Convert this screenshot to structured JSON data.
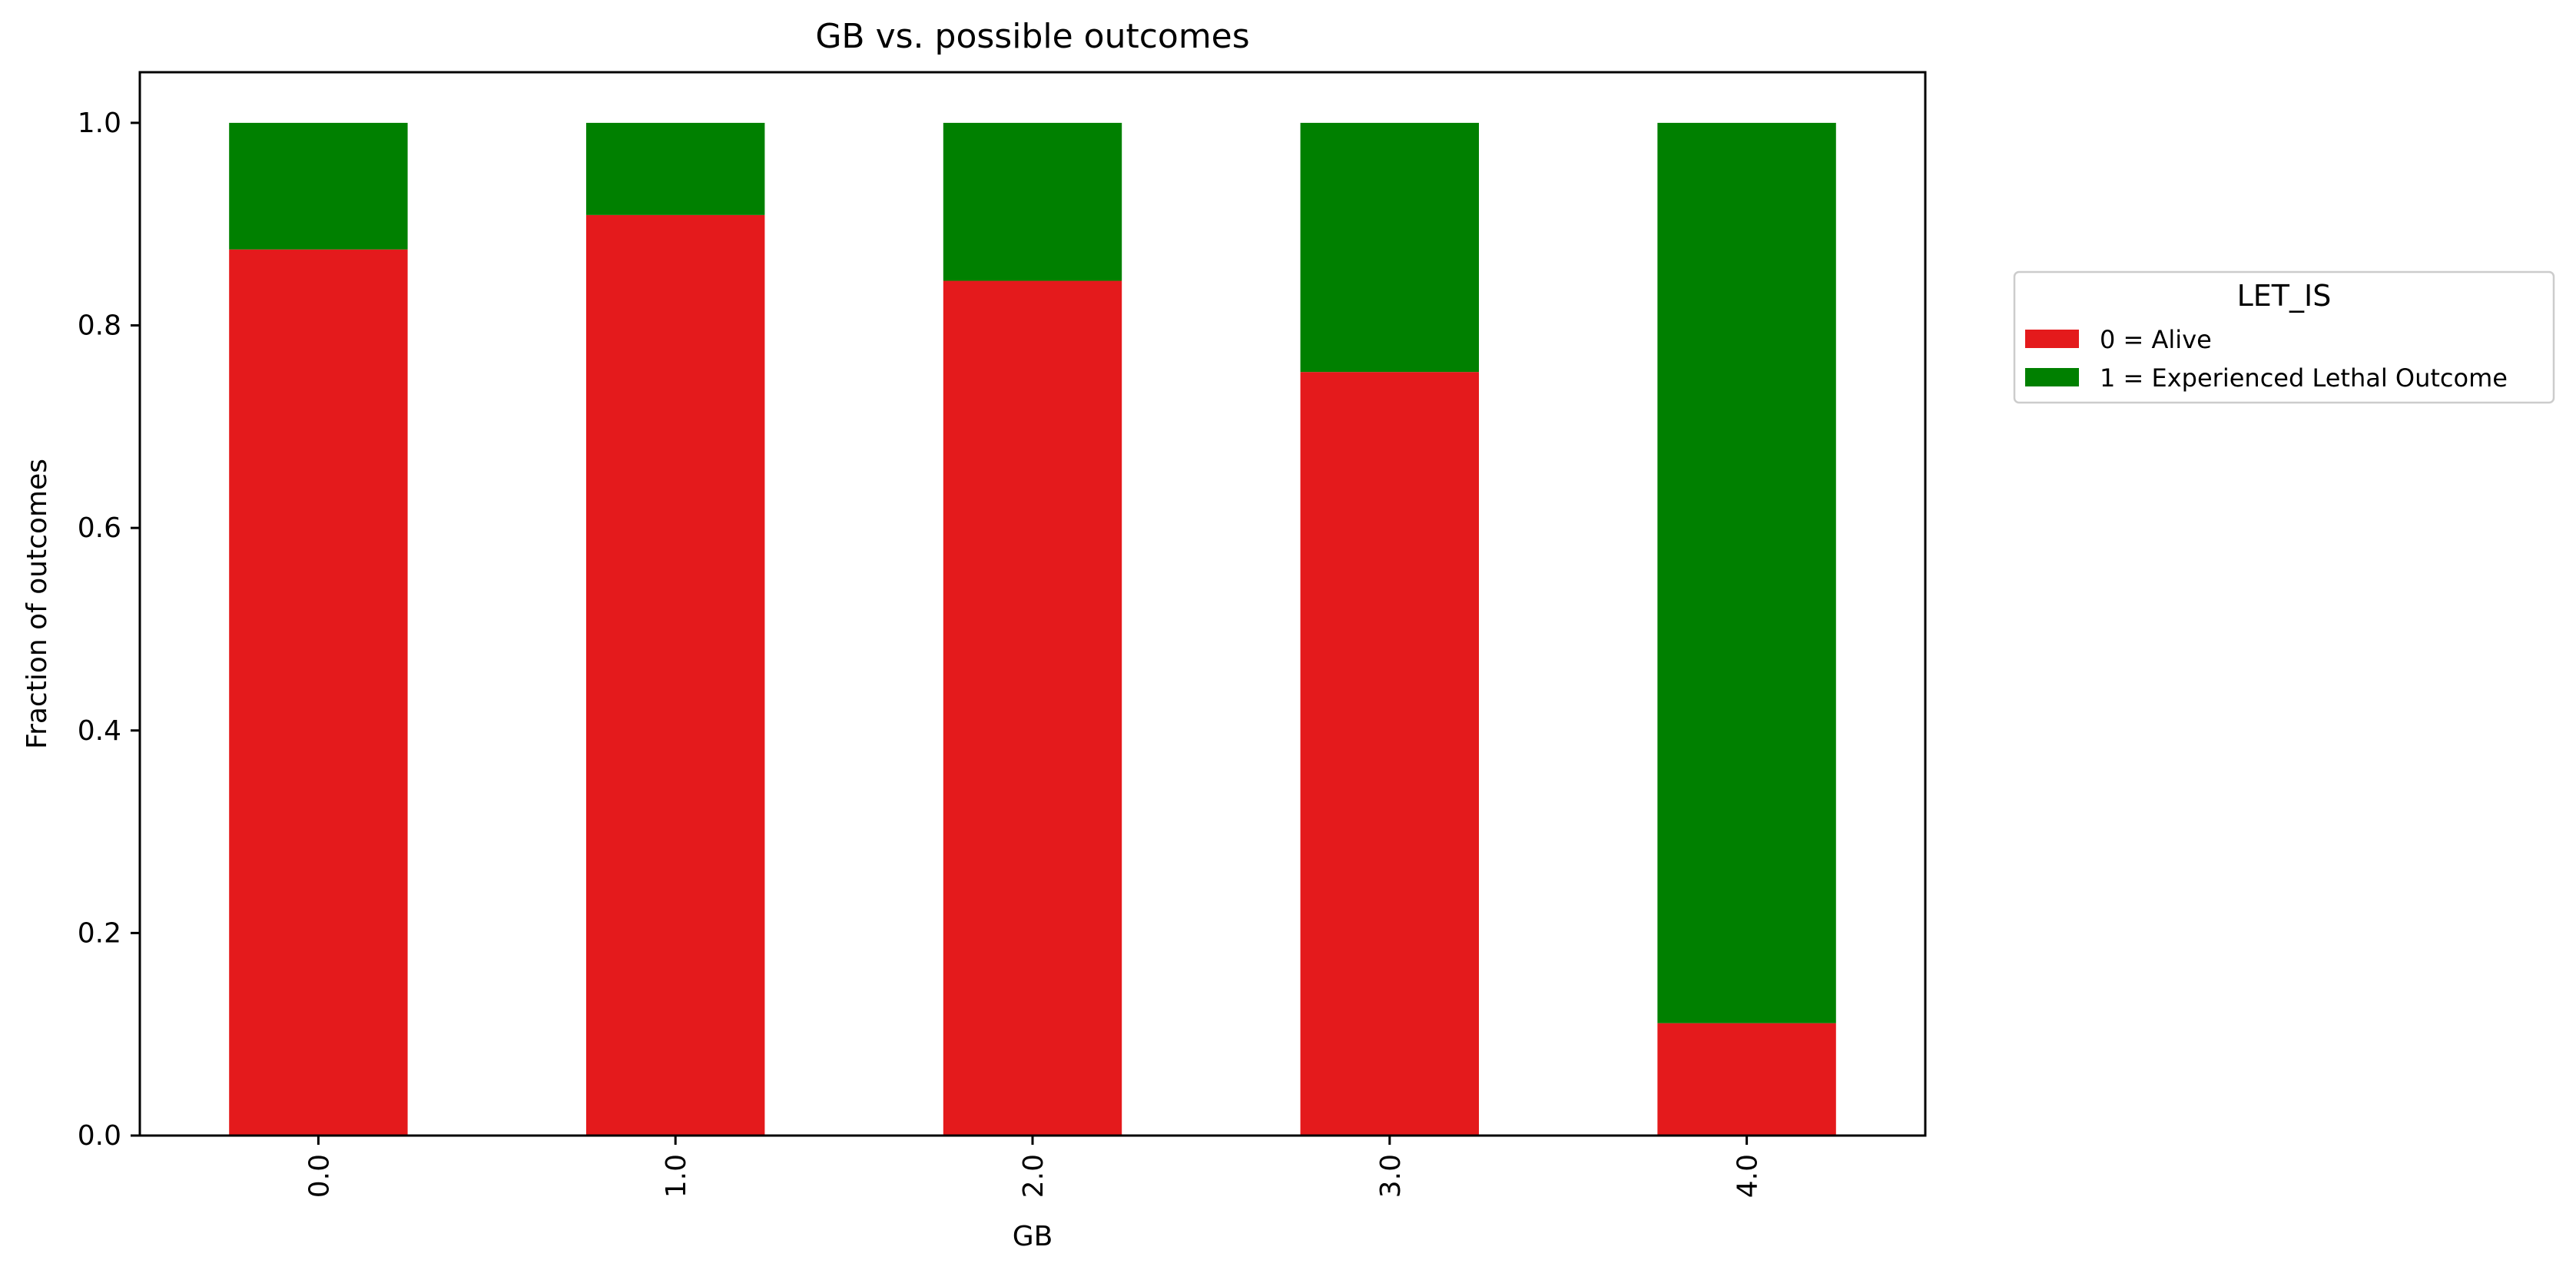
{
  "chart_data": {
    "type": "bar",
    "stacked": true,
    "title": "GB vs. possible outcomes",
    "xlabel": "GB",
    "ylabel": "Fraction of outcomes",
    "categories": [
      "0.0",
      "1.0",
      "2.0",
      "3.0",
      "4.0"
    ],
    "series": [
      {
        "name": "0 = Alive",
        "color": "#e41a1c",
        "values": [
          0.875,
          0.909,
          0.844,
          0.754,
          0.111
        ]
      },
      {
        "name": "1 = Experienced Lethal Outcome",
        "color": "#008000",
        "values": [
          0.125,
          0.091,
          0.156,
          0.246,
          0.889
        ]
      }
    ],
    "ylim": [
      0,
      1.05
    ],
    "yticks": [
      "0.0",
      "0.2",
      "0.4",
      "0.6",
      "0.8",
      "1.0"
    ],
    "legend": {
      "title": "LET_IS",
      "placement": "outside-right"
    },
    "grid": false
  }
}
